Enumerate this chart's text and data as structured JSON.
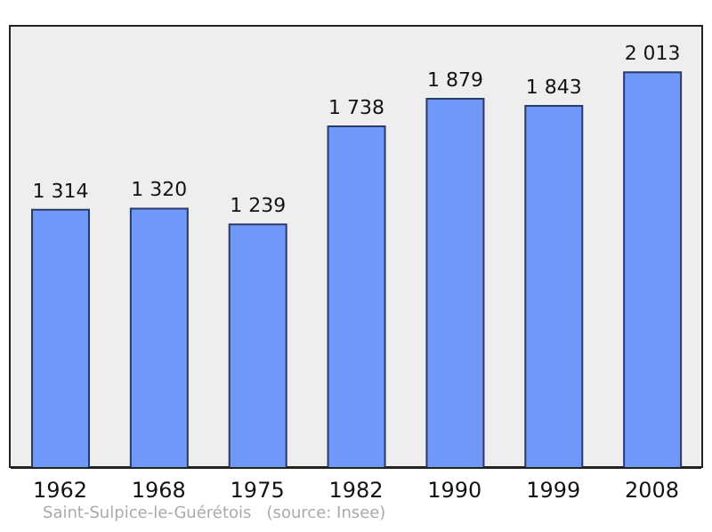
{
  "chart_data": {
    "type": "bar",
    "categories": [
      "1962",
      "1968",
      "1975",
      "1982",
      "1990",
      "1999",
      "2008"
    ],
    "values": [
      1314,
      1320,
      1239,
      1738,
      1879,
      1843,
      2013
    ],
    "value_labels": [
      "1 314",
      "1 320",
      "1 239",
      "1 738",
      "1 879",
      "1 843",
      "2 013"
    ],
    "color": "#7098f8",
    "annotations": [
      "Saint-Sulpice-le-Guérétois   (source: Insee)"
    ],
    "data_labels": false
  }
}
